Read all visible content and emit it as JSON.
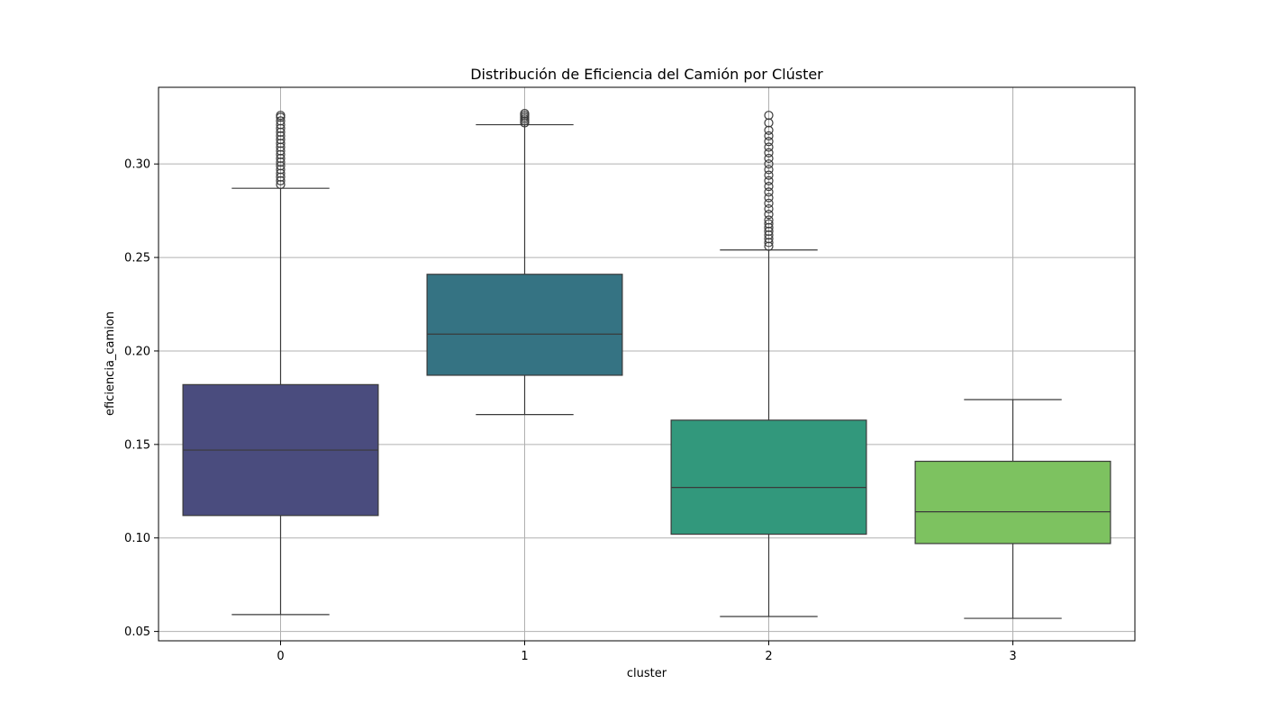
{
  "chart_data": {
    "type": "box",
    "title": "Distribución de Eficiencia del Camión por Clúster",
    "xlabel": "cluster",
    "ylabel": "eficiencia_camion",
    "ylim": [
      0.045,
      0.341
    ],
    "yticks": [
      0.05,
      0.1,
      0.15,
      0.2,
      0.25,
      0.3
    ],
    "ytick_labels": [
      "0.05",
      "0.10",
      "0.15",
      "0.20",
      "0.25",
      "0.30"
    ],
    "grid": true,
    "categories": [
      "0",
      "1",
      "2",
      "3"
    ],
    "boxes": [
      {
        "category": "0",
        "color": "#4a4c7e",
        "whisker_low": 0.059,
        "q1": 0.112,
        "median": 0.147,
        "q3": 0.182,
        "whisker_high": 0.287,
        "outliers": [
          0.289,
          0.291,
          0.293,
          0.295,
          0.297,
          0.299,
          0.301,
          0.303,
          0.305,
          0.307,
          0.309,
          0.311,
          0.313,
          0.315,
          0.317,
          0.319,
          0.321,
          0.323,
          0.325,
          0.326
        ]
      },
      {
        "category": "1",
        "color": "#357383",
        "whisker_low": 0.166,
        "q1": 0.187,
        "median": 0.209,
        "q3": 0.241,
        "whisker_high": 0.321,
        "outliers": [
          0.322,
          0.323,
          0.324,
          0.325,
          0.326,
          0.327
        ]
      },
      {
        "category": "2",
        "color": "#32987c",
        "whisker_low": 0.058,
        "q1": 0.102,
        "median": 0.127,
        "q3": 0.163,
        "whisker_high": 0.254,
        "outliers": [
          0.256,
          0.258,
          0.26,
          0.262,
          0.264,
          0.266,
          0.268,
          0.27,
          0.273,
          0.276,
          0.279,
          0.282,
          0.285,
          0.288,
          0.291,
          0.294,
          0.297,
          0.3,
          0.303,
          0.306,
          0.309,
          0.312,
          0.315,
          0.318,
          0.322,
          0.326
        ]
      },
      {
        "category": "3",
        "color": "#7dc260",
        "whisker_low": 0.057,
        "q1": 0.097,
        "median": 0.114,
        "q3": 0.141,
        "whisker_high": 0.174,
        "outliers": []
      }
    ]
  }
}
